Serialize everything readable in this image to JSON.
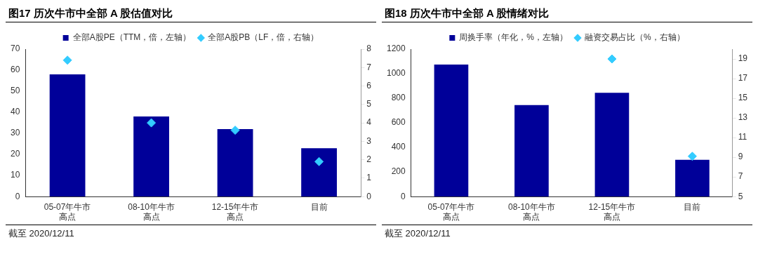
{
  "chart_data": [
    {
      "type": "bar",
      "title": "图17 历次牛市中全部 A 股估值对比",
      "categories": [
        "05-07年牛市高点",
        "08-10年牛市高点",
        "12-15年牛市高点",
        "目前"
      ],
      "series": [
        {
          "name": "全部A股PE（TTM，倍，左轴）",
          "color": "#000099",
          "values": [
            58,
            38,
            32,
            23
          ]
        },
        {
          "name": "全部A股PB（LF，倍，右轴）",
          "type": "scatter",
          "color": "#33ccff",
          "axis": "y2",
          "marker": "diamond",
          "values": [
            7.4,
            4.0,
            3.6,
            1.9
          ]
        }
      ],
      "ylim": [
        0,
        70
      ],
      "yticks": [
        0,
        10,
        20,
        30,
        40,
        50,
        60,
        70
      ],
      "y2lim": [
        0,
        8
      ],
      "y2ticks": [
        0,
        1,
        2,
        3,
        4,
        5,
        6,
        7,
        8
      ],
      "grid": false,
      "legend": "top",
      "annotations": [
        "截至 2020/12/11"
      ]
    },
    {
      "type": "bar",
      "title": "图18 历次牛市中全部 A 股情绪对比",
      "categories": [
        "05-07年牛市高点",
        "08-10年牛市高点",
        "12-15年牛市高点",
        "目前"
      ],
      "series": [
        {
          "name": "周换手率（年化，%，左轴）",
          "color": "#000099",
          "values": [
            1075,
            745,
            845,
            300
          ]
        },
        {
          "name": "融资交易占比（%，右轴）",
          "type": "scatter",
          "color": "#33ccff",
          "axis": "y2",
          "marker": "diamond",
          "values": [
            null,
            null,
            19,
            9.1
          ]
        }
      ],
      "ylim": [
        0,
        1200
      ],
      "yticks": [
        0,
        200,
        400,
        600,
        800,
        1000,
        1200
      ],
      "y2lim": [
        5,
        20
      ],
      "y2ticks": [
        5,
        7,
        9,
        11,
        13,
        15,
        17,
        19
      ],
      "grid": false,
      "legend": "top",
      "annotations": [
        "截至 2020/12/11"
      ]
    }
  ]
}
